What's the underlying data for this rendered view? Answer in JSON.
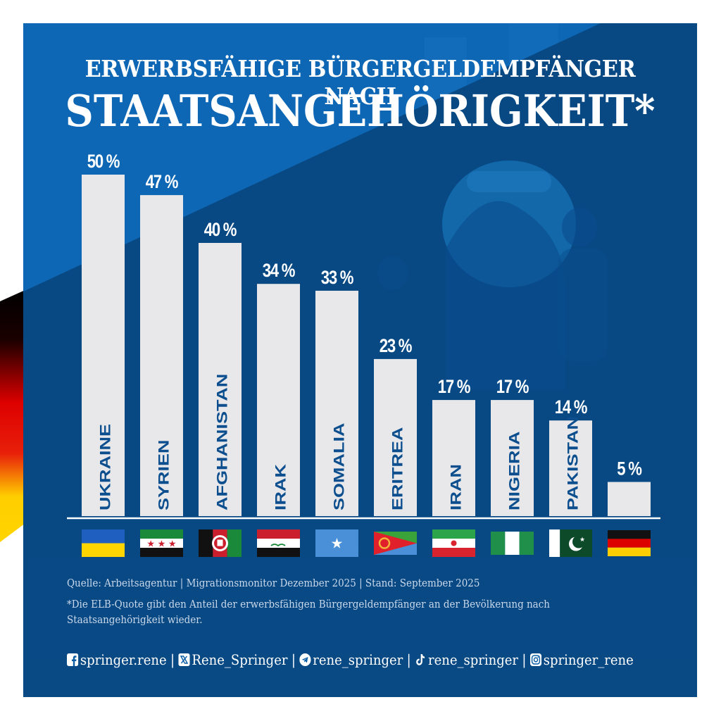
{
  "title": {
    "line1": "ERWERBSFÄHIGE BÜRGERGELDEMPFÄNGER NACH",
    "line2": "STAATSANGEHÖRIGKEIT*"
  },
  "chart_data": {
    "type": "bar",
    "title": "ERWERBSFÄHIGE BÜRGERGELDEMPFÄNGER NACH STAATSANGEHÖRIGKEIT*",
    "xlabel": "",
    "ylabel": "",
    "ylim": [
      0,
      50
    ],
    "grid": false,
    "categories": [
      "UKRAINE",
      "SYRIEN",
      "AFGHANISTAN",
      "IRAK",
      "SOMALIA",
      "ERITREA",
      "IRAN",
      "NIGERIA",
      "PAKISTAN",
      "DEUTSCHLAND"
    ],
    "category_labels_shown": [
      "UKRAINE",
      "SYRIEN",
      "AFGHANISTAN",
      "IRAK",
      "SOMALIA",
      "ERITREA",
      "IRAN",
      "NIGERIA",
      "PAKISTAN",
      ""
    ],
    "values": [
      50,
      47,
      40,
      34,
      33,
      23,
      17,
      17,
      14,
      5
    ],
    "data_labels": [
      "50 %",
      "47 %",
      "40 %",
      "34 %",
      "33 %",
      "23 %",
      "17 %",
      "17 %",
      "14 %",
      "5 %"
    ],
    "flags": [
      "ukraine-flag",
      "syria-flag",
      "afghanistan-flag",
      "iraq-flag",
      "somalia-flag",
      "eritrea-flag",
      "iran-flag",
      "nigeria-flag",
      "pakistan-flag",
      "germany-flag"
    ],
    "unit": "%"
  },
  "colors": {
    "background_blue": "#0b5ea6",
    "background_dark": "#083f73",
    "bar_fill": "#e8e8ea",
    "bar_label": "#0d4f8e",
    "text_white": "#ffffff"
  },
  "footer": {
    "source": "Quelle: Arbeitsagentur | Migrationsmonitor Dezember 2025 | Stand: September 2025",
    "note": "*Die ELB-Quote gibt den Anteil der erwerbsfähigen Bürgergeldempfänger an der Bevölkerung nach Staatsangehörigkeit wieder."
  },
  "socials": [
    {
      "icon": "facebook-icon",
      "handle": "springer.rene"
    },
    {
      "icon": "x-icon",
      "handle": "Rene_Springer"
    },
    {
      "icon": "telegram-icon",
      "handle": "rene_springer"
    },
    {
      "icon": "tiktok-icon",
      "handle": "rene_springer"
    },
    {
      "icon": "instagram-icon",
      "handle": "springer_rene"
    }
  ],
  "separator": "|"
}
